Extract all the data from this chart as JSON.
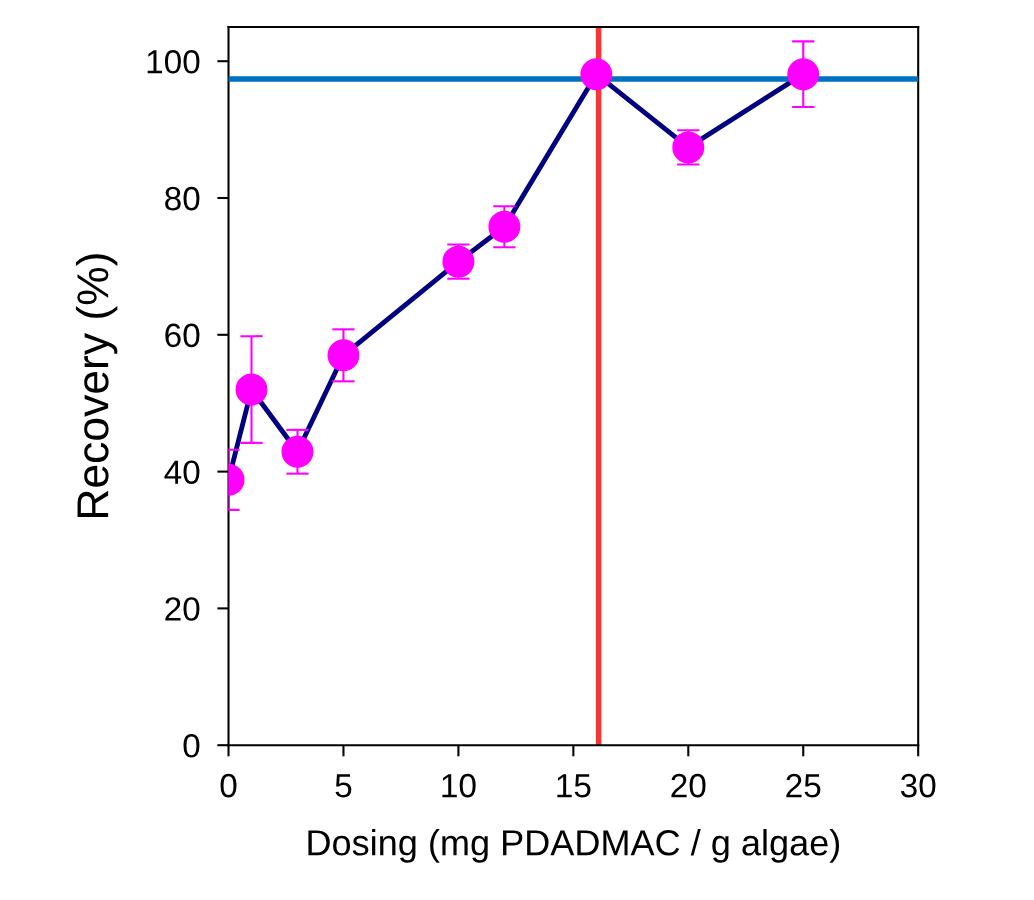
{
  "chart_data": {
    "type": "line",
    "xlabel": "Dosing (mg PDADMAC / g algae)",
    "ylabel": "Recovery (%)",
    "x": [
      0,
      1,
      3,
      5,
      10,
      12,
      16,
      20,
      25
    ],
    "series": [
      {
        "color": "#000080",
        "colors": [
          "#ff00ff",
          "#ff00ff",
          "#ff00ff",
          "#ff00ff",
          "#ff00ff",
          "#ff00ff",
          "#ff00ff",
          "#ff00ff",
          "#ff00ff"
        ],
        "values": [
          38.8,
          52.0,
          42.9,
          57.0,
          70.7,
          75.8,
          98.1,
          87.4,
          98.1
        ],
        "errors": [
          4.4,
          7.8,
          3.2,
          3.8,
          2.5,
          3.0,
          null,
          2.5,
          4.8
        ]
      }
    ],
    "marker": "circle",
    "line_style": "solid",
    "xlim": [
      0,
      30
    ],
    "xticks": [
      0,
      5,
      10,
      15,
      20,
      25,
      30
    ],
    "ylim": [
      0,
      105
    ],
    "yticks": [
      0,
      20,
      40,
      60,
      80,
      100
    ],
    "ref_lines": [
      {
        "axis": "y",
        "value": 97.4,
        "color": "#0070c0"
      },
      {
        "axis": "x",
        "value": 16.1,
        "color": "#ff3333"
      }
    ],
    "grid": false,
    "legend": false
  }
}
